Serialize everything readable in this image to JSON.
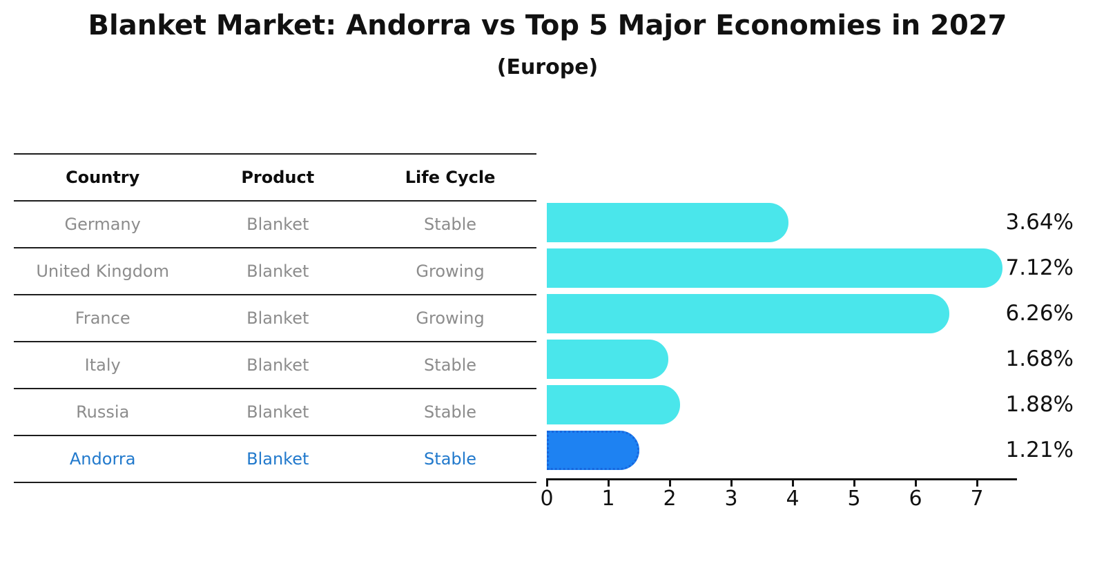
{
  "title": "Blanket Market: Andorra vs Top 5 Major Economies in 2027",
  "subtitle": "(Europe)",
  "table": {
    "headers": [
      "Country",
      "Product",
      "Life Cycle"
    ],
    "rows": [
      {
        "country": "Germany",
        "product": "Blanket",
        "life_cycle": "Stable"
      },
      {
        "country": "United Kingdom",
        "product": "Blanket",
        "life_cycle": "Growing"
      },
      {
        "country": "France",
        "product": "Blanket",
        "life_cycle": "Growing"
      },
      {
        "country": "Italy",
        "product": "Blanket",
        "life_cycle": "Stable"
      },
      {
        "country": "Russia",
        "product": "Blanket",
        "life_cycle": "Stable"
      },
      {
        "country": "Andorra",
        "product": "Blanket",
        "life_cycle": "Stable"
      }
    ],
    "highlight_row": "Andorra"
  },
  "chart_data": {
    "type": "bar",
    "orientation": "horizontal",
    "title": "Blanket Market: Andorra vs Top 5 Major Economies in 2027",
    "subtitle": "(Europe)",
    "categories": [
      "Germany",
      "United Kingdom",
      "France",
      "Italy",
      "Russia",
      "Andorra"
    ],
    "values": [
      3.64,
      7.12,
      6.26,
      1.68,
      1.88,
      1.21
    ],
    "value_labels": [
      "3.64%",
      "7.12%",
      "6.26%",
      "1.68%",
      "1.88%",
      "1.21%"
    ],
    "xlabel": "",
    "ylabel": "",
    "xlim": [
      0,
      7.55
    ],
    "xticks": [
      0,
      1,
      2,
      3,
      4,
      5,
      6,
      7
    ],
    "grid": false,
    "legend": false,
    "highlight_index": 5
  },
  "colors": {
    "bar": "#4ae6eb",
    "highlight_bar": "#1e82f2",
    "highlight_bar_border": "#1766dd",
    "highlight_text": "#2179cc",
    "row_text": "#8c8c8c",
    "header_text": "#0d0d0d",
    "axis": "#111111",
    "background": "#ffffff"
  }
}
